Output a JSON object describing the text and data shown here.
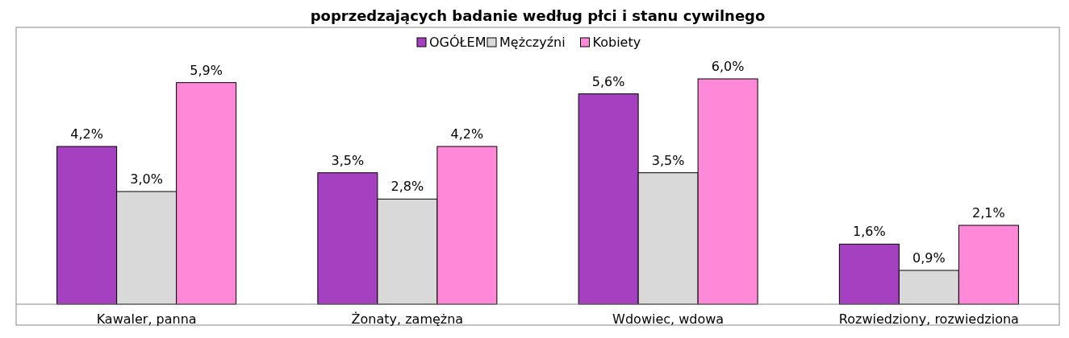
{
  "chart_data": {
    "type": "bar",
    "title": "poprzedzających badanie według płci i stanu cywilnego",
    "categories": [
      "Kawaler, panna",
      "Żonaty, zamężna",
      "Wdowiec, wdowa",
      "Rozwiedziony, rozwiedziona"
    ],
    "series": [
      {
        "name": "OGÓŁEM",
        "color": "#a541c1",
        "values": [
          4.2,
          3.5,
          5.6,
          1.6
        ],
        "value_labels": [
          "4,2%",
          "3,5%",
          "5,6%",
          "1,6%"
        ]
      },
      {
        "name": "Mężczyźni",
        "color": "#d9d9d9",
        "values": [
          3.0,
          2.8,
          3.5,
          0.9
        ],
        "value_labels": [
          "3,0%",
          "2,8%",
          "3,5%",
          "0,9%"
        ]
      },
      {
        "name": "Kobiety",
        "color": "#ff88d9",
        "values": [
          5.9,
          4.2,
          6.0,
          2.1
        ],
        "value_labels": [
          "5,9%",
          "4,2%",
          "6,0%",
          "2,1%"
        ]
      }
    ],
    "legend": "top"
  }
}
